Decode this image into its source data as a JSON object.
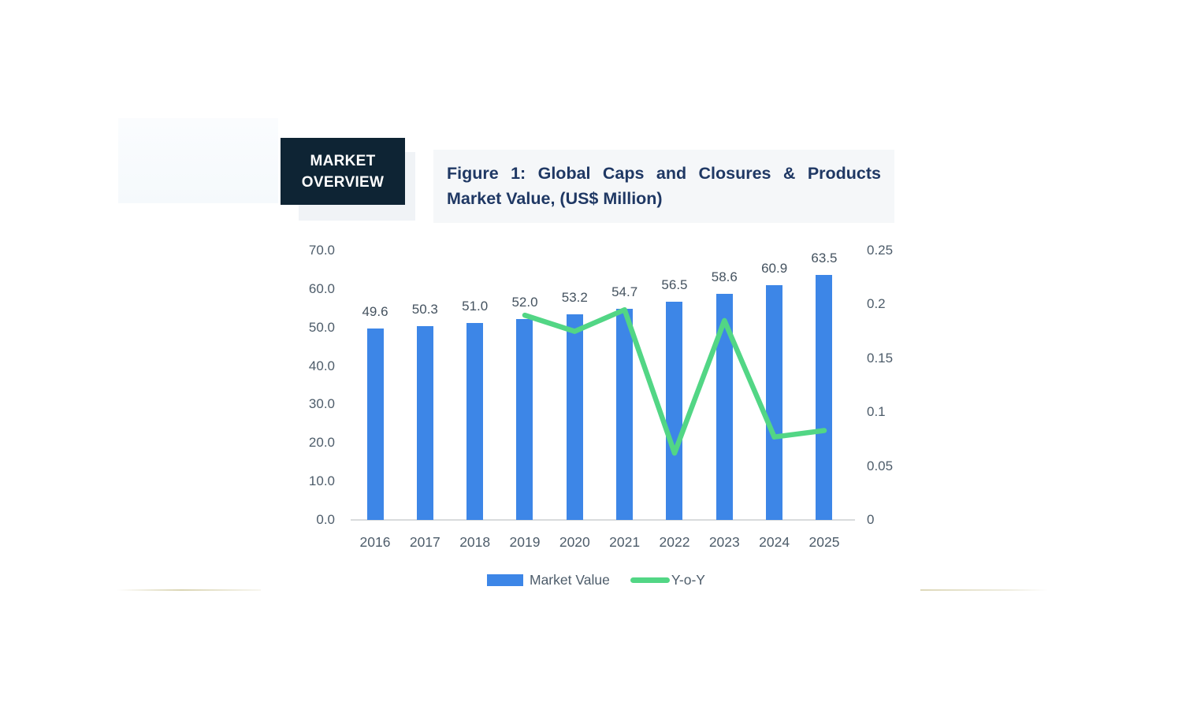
{
  "colors": {
    "bar_blue": "#3d86e7",
    "line_green": "#52d685",
    "tag_bg": "#0e2434",
    "tag_text": "#ffffff",
    "title_text": "#1f3864",
    "title_bg": "#f5f7f9",
    "axis_text": "#4d5c6a"
  },
  "header": {
    "tag_line1": "MARKET",
    "tag_line2": "OVERVIEW",
    "title_line1": "Figure 1: Global Caps and Closures & Products",
    "title_line2": "Market Value, (US$ Million)"
  },
  "chart_data": {
    "type": "bar",
    "title": "Figure 1: Global Caps and Closures & Products Market Value, (US$ Million)",
    "categories": [
      "2016",
      "2017",
      "2018",
      "2019",
      "2020",
      "2021",
      "2022",
      "2023",
      "2024",
      "2025"
    ],
    "series": [
      {
        "name": "Market Value",
        "type": "bar",
        "axis": "left",
        "color": "#3d86e7",
        "values": [
          49.6,
          50.3,
          51.0,
          52.0,
          53.2,
          54.7,
          56.5,
          58.6,
          60.9,
          63.5
        ],
        "labels": [
          "49.6",
          "50.3",
          "51.0",
          "52.0",
          "53.2",
          "54.7",
          "56.5",
          "58.6",
          "60.9",
          "63.5"
        ]
      },
      {
        "name": "Y-o-Y",
        "type": "line",
        "axis": "right",
        "color": "#52d685",
        "values": [
          null,
          null,
          null,
          0.19,
          0.175,
          0.195,
          0.062,
          0.185,
          0.077,
          0.083
        ]
      }
    ],
    "left_axis": {
      "min": 0,
      "max": 70,
      "tick_labels": [
        "70.0",
        "60.0",
        "50.0",
        "40.0",
        "30.0",
        "20.0",
        "10.0",
        "0.0"
      ]
    },
    "right_axis": {
      "min": 0,
      "max": 0.25,
      "tick_labels": [
        "0.25",
        "0.2",
        "0.15",
        "0.1",
        "0.05",
        "0"
      ]
    },
    "grid": false,
    "legend_position": "bottom",
    "legend": [
      {
        "label": "Market Value",
        "marker": "bar",
        "color": "#3d86e7"
      },
      {
        "label": "Y-o-Y",
        "marker": "line",
        "color": "#52d685"
      }
    ]
  }
}
